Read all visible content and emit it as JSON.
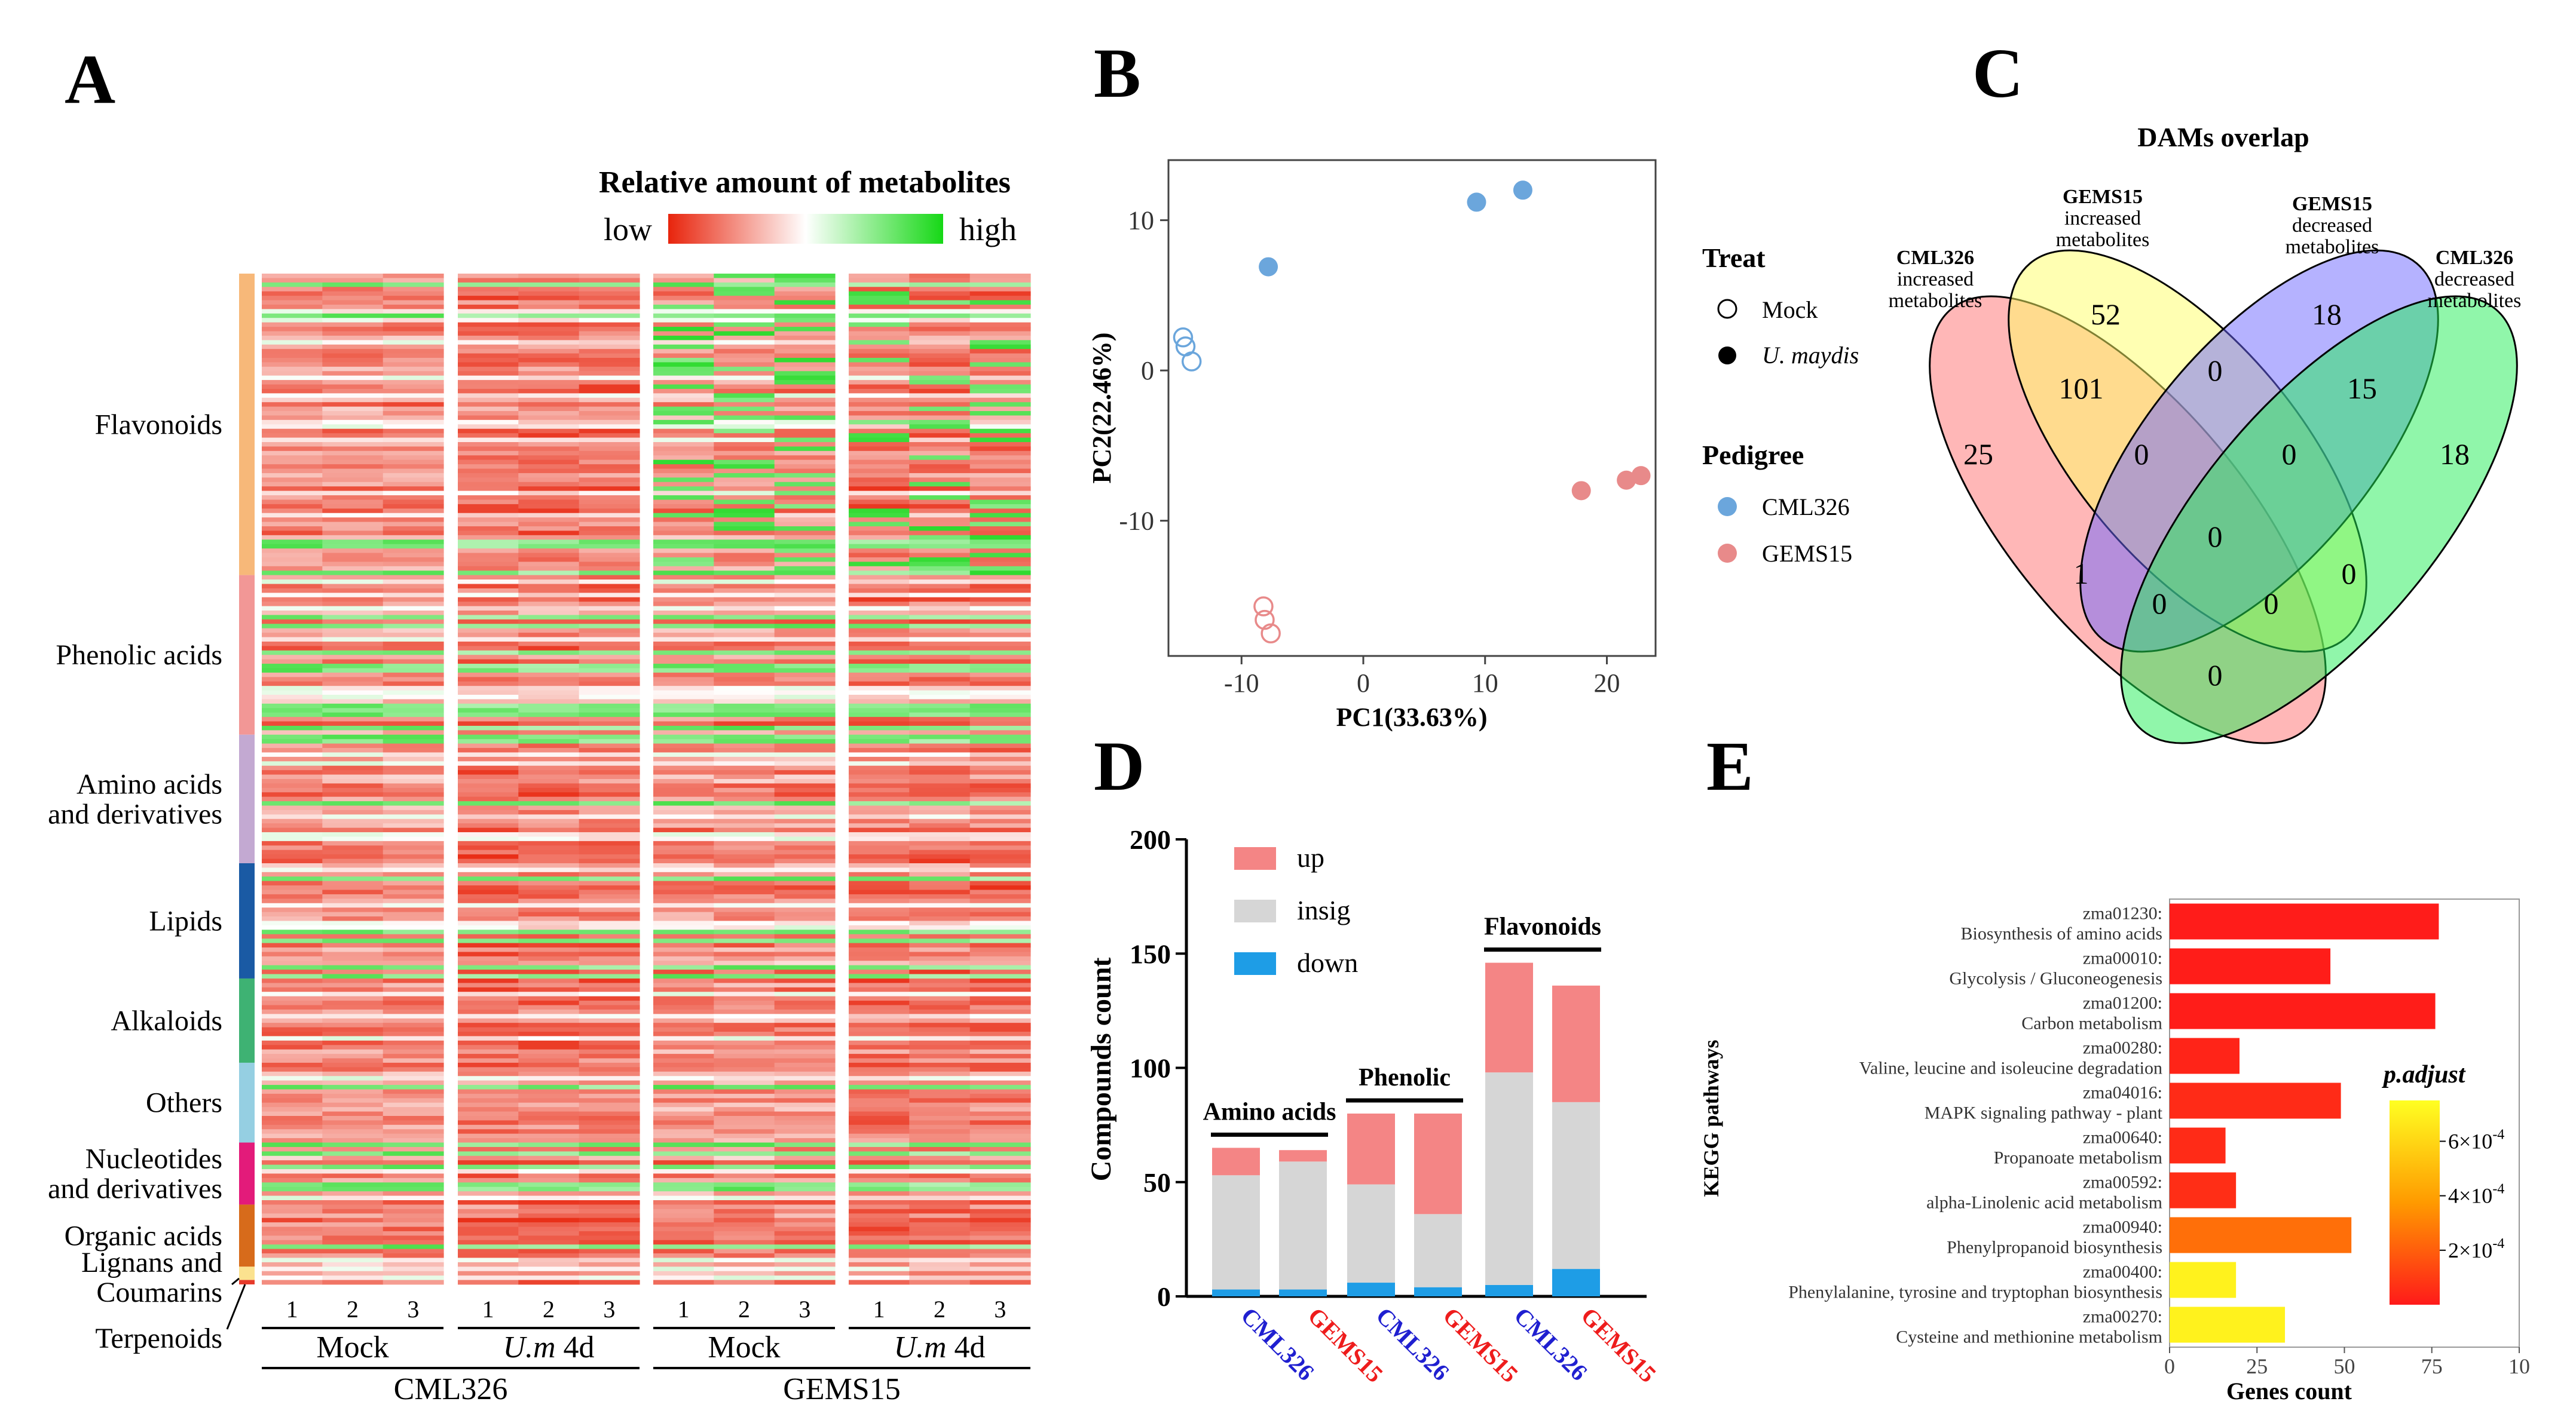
{
  "panel_letters": [
    "A",
    "B",
    "C",
    "D",
    "E"
  ],
  "chart_data": [
    {
      "panel": "A",
      "type": "heatmap",
      "title": "Relative amount of metabolites",
      "scale_low": "low",
      "scale_high": "high",
      "colors": {
        "low": "#e8240c",
        "mid": "#ffffff",
        "high": "#1ad81a"
      },
      "categories": [
        {
          "name": "Flavonoids",
          "lines": [
            "Flavonoids"
          ],
          "color": "#f7b879",
          "rows": 68
        },
        {
          "name": "Phenolic acids",
          "lines": [
            "Phenolic acids"
          ],
          "color": "#f29796",
          "rows": 36
        },
        {
          "name": "Amino acids and derivatives",
          "lines": [
            "Amino acids",
            "and derivatives"
          ],
          "color": "#c3a9d2",
          "rows": 29
        },
        {
          "name": "Lipids",
          "lines": [
            "Lipids"
          ],
          "color": "#1a5aa4",
          "rows": 26
        },
        {
          "name": "Alkaloids",
          "lines": [
            "Alkaloids"
          ],
          "color": "#3eb273",
          "rows": 19
        },
        {
          "name": "Others",
          "lines": [
            "Others"
          ],
          "color": "#95cfe2",
          "rows": 18
        },
        {
          "name": "Nucleotides and derivatives",
          "lines": [
            "Nucleotides",
            "and derivatives"
          ],
          "color": "#e31b7a",
          "rows": 14
        },
        {
          "name": "Organic acids",
          "lines": [
            "Organic acids"
          ],
          "color": "#d76b1b",
          "rows": 14
        },
        {
          "name": "Lignans and Coumarins",
          "lines": [
            "Lignans and",
            "Coumarins"
          ],
          "color": "#fbe28f",
          "rows": 3
        },
        {
          "name": "Terpenoids",
          "lines": [
            "Terpenoids"
          ],
          "color": "#e63a2b",
          "rows": 1
        }
      ],
      "replicates": [
        "1",
        "2",
        "3"
      ],
      "treatments": [
        "Mock",
        "U.m 4d",
        "Mock",
        "U.m 4d"
      ],
      "genotypes": [
        "CML326",
        "GEMS15"
      ]
    },
    {
      "panel": "B",
      "type": "scatter",
      "xlabel": "PC1(33.63%)",
      "ylabel": "PC2(22.46%)",
      "xlim": [
        -16,
        24
      ],
      "ylim": [
        -19,
        14
      ],
      "xticks": [
        -10,
        0,
        10,
        20
      ],
      "yticks": [
        -10,
        0,
        10
      ],
      "points": [
        {
          "x": -14.8,
          "y": 2.2,
          "pedigree": "CML326",
          "treat": "Mock"
        },
        {
          "x": -14.6,
          "y": 1.6,
          "pedigree": "CML326",
          "treat": "Mock"
        },
        {
          "x": -14.1,
          "y": 0.6,
          "pedigree": "CML326",
          "treat": "Mock"
        },
        {
          "x": -7.8,
          "y": 6.9,
          "pedigree": "CML326",
          "treat": "U. maydis"
        },
        {
          "x": 9.3,
          "y": 11.2,
          "pedigree": "CML326",
          "treat": "U. maydis"
        },
        {
          "x": 13.1,
          "y": 12.0,
          "pedigree": "CML326",
          "treat": "U. maydis"
        },
        {
          "x": -8.2,
          "y": -15.7,
          "pedigree": "GEMS15",
          "treat": "Mock"
        },
        {
          "x": -8.1,
          "y": -16.6,
          "pedigree": "GEMS15",
          "treat": "Mock"
        },
        {
          "x": -7.6,
          "y": -17.5,
          "pedigree": "GEMS15",
          "treat": "Mock"
        },
        {
          "x": 17.9,
          "y": -8.0,
          "pedigree": "GEMS15",
          "treat": "U. maydis"
        },
        {
          "x": 21.6,
          "y": -7.3,
          "pedigree": "GEMS15",
          "treat": "U. maydis"
        },
        {
          "x": 22.8,
          "y": -7.0,
          "pedigree": "GEMS15",
          "treat": "U. maydis"
        }
      ],
      "legend": {
        "treat_title": "Treat",
        "treat": [
          "Mock",
          "U. maydis"
        ],
        "pedigree_title": "Pedigree",
        "pedigree": [
          {
            "name": "CML326",
            "color": "#6ba6dc"
          },
          {
            "name": "GEMS15",
            "color": "#e88a8a"
          }
        ]
      }
    },
    {
      "panel": "C",
      "type": "venn",
      "title": "DAMs overlap",
      "sets": [
        {
          "lines": [
            "CML326",
            "increased",
            "metabolites"
          ],
          "color": "#ff6f6f"
        },
        {
          "lines": [
            "GEMS15",
            "increased",
            "metabolites"
          ],
          "color": "#ffff66"
        },
        {
          "lines": [
            "GEMS15",
            "decreased",
            "metabolites"
          ],
          "color": "#6b66ff"
        },
        {
          "lines": [
            "CML326",
            "decreased",
            "metabolites"
          ],
          "color": "#22ee55"
        }
      ],
      "regions": [
        "52",
        "18",
        "25",
        "18",
        "101",
        "0",
        "15",
        "0",
        "0",
        "0",
        "1",
        "0",
        "0",
        "0",
        "0"
      ]
    },
    {
      "panel": "D",
      "type": "bar",
      "stacked": true,
      "ylabel": "Compounds count",
      "ylim": [
        0,
        200
      ],
      "yticks": [
        0,
        50,
        100,
        150,
        200
      ],
      "categories": [
        "CML326",
        "GEMS15",
        "CML326",
        "GEMS15",
        "CML326",
        "GEMS15"
      ],
      "category_colors": [
        "#1f1fd0",
        "#ee1c1c",
        "#1f1fd0",
        "#ee1c1c",
        "#1f1fd0",
        "#ee1c1c"
      ],
      "groups": [
        "Amino acids",
        "Phenolic",
        "Flavonoids"
      ],
      "series": [
        {
          "name": "down",
          "color": "#1e9de6",
          "values": [
            3,
            3,
            6,
            4,
            5,
            12
          ]
        },
        {
          "name": "insig",
          "color": "#d6d6d6",
          "values": [
            50,
            56,
            43,
            32,
            93,
            73
          ]
        },
        {
          "name": "up",
          "color": "#f48585",
          "values": [
            12,
            5,
            31,
            44,
            48,
            51
          ]
        }
      ],
      "legend_order": [
        "up",
        "insig",
        "down"
      ]
    },
    {
      "panel": "E",
      "type": "bar",
      "orientation": "horizontal",
      "ylabel": "KEGG pathways",
      "xlabel": "Genes count",
      "xlim": [
        0,
        100
      ],
      "xticks": [
        "0",
        "25",
        "50",
        "75",
        "10"
      ],
      "pathways": [
        {
          "id": "zma01230:",
          "name": "Biosynthesis of amino acids",
          "count": 77,
          "padj": 5e-06
        },
        {
          "id": "zma00010:",
          "name": "Glycolysis / Gluconeogenesis",
          "count": 46,
          "padj": 8e-06
        },
        {
          "id": "zma01200:",
          "name": "Carbon metabolism",
          "count": 76,
          "padj": 8e-06
        },
        {
          "id": "zma00280:",
          "name": "Valine, leucine and isoleucine degradation",
          "count": 20,
          "padj": 3e-05
        },
        {
          "id": "zma04016:",
          "name": "MAPK signaling pathway - plant",
          "count": 49,
          "padj": 5e-05
        },
        {
          "id": "zma00640:",
          "name": "Propanoate metabolism",
          "count": 16,
          "padj": 5e-05
        },
        {
          "id": "zma00592:",
          "name": "alpha-Linolenic acid metabolism",
          "count": 19,
          "padj": 6e-05
        },
        {
          "id": "zma00940:",
          "name": "Phenylpropanoid biosynthesis",
          "count": 52,
          "padj": 0.00025
        },
        {
          "id": "zma00400:",
          "name": "Phenylalanine, tyrosine and tryptophan biosynthesis",
          "count": 19,
          "padj": 0.0007
        },
        {
          "id": "zma00270:",
          "name": "Cysteine and methionine metabolism",
          "count": 33,
          "padj": 0.0007
        }
      ],
      "colorbar_title": "p.adjust",
      "colorbar_labels": [
        "6×10",
        "4×10",
        "2×10"
      ],
      "colorbar_exp": "-4",
      "colorbar_values": [
        0.0006,
        0.0004,
        0.0002
      ],
      "colorbar_range": [
        0,
        0.00075
      ]
    }
  ]
}
